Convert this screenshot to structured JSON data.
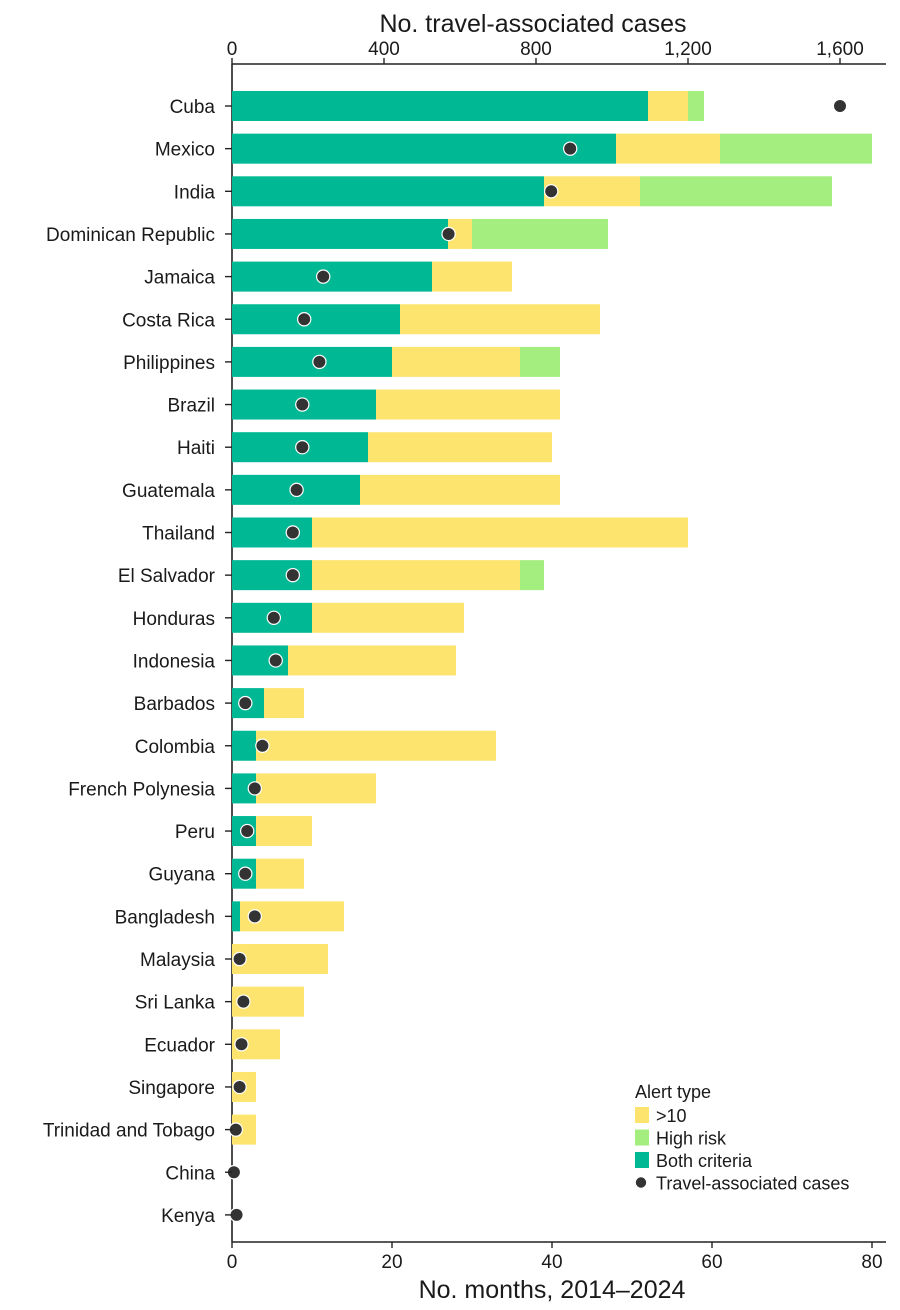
{
  "chart_data": {
    "type": "bar",
    "stacked": true,
    "orientation": "horizontal",
    "title": "",
    "xlabel_bottom": "No. months, 2014–2024",
    "xlabel_top": "No. travel-associated cases",
    "xlim_bottom": [
      0,
      82
    ],
    "xlim_top": [
      0,
      1722
    ],
    "ticks_bottom": [
      "0",
      "20",
      "40",
      "60",
      "80"
    ],
    "ticks_bottom_values": [
      0,
      20,
      40,
      60,
      80
    ],
    "ticks_top": [
      "0",
      "400",
      "800",
      "1,200",
      "1,600"
    ],
    "ticks_top_values": [
      0,
      400,
      800,
      1200,
      1600
    ],
    "categories": [
      "Cuba",
      "Mexico",
      "India",
      "Dominican Republic",
      "Jamaica",
      "Costa Rica",
      "Philippines",
      "Brazil",
      "Haiti",
      "Guatemala",
      "Thailand",
      "El Salvador",
      "Honduras",
      "Indonesia",
      "Barbados",
      "Colombia",
      "French Polynesia",
      "Peru",
      "Guyana",
      "Bangladesh",
      "Malaysia",
      "Sri Lanka",
      "Ecuador",
      "Singapore",
      "Trinidad and Tobago",
      "China",
      "Kenya"
    ],
    "series": [
      {
        "name": "Both criteria",
        "color": "#00b894",
        "values": [
          52,
          48,
          39,
          27,
          25,
          21,
          20,
          18,
          17,
          16,
          10,
          10,
          10,
          7,
          4,
          3,
          3,
          3,
          3,
          1,
          0,
          0,
          0,
          0,
          0,
          0,
          0
        ]
      },
      {
        "name": ">10",
        "color": "#fde46f",
        "values": [
          5,
          13,
          12,
          3,
          10,
          25,
          16,
          23,
          23,
          25,
          47,
          26,
          19,
          21,
          5,
          30,
          15,
          7,
          6,
          13,
          12,
          9,
          6,
          3,
          3,
          0,
          0
        ]
      },
      {
        "name": "High risk",
        "color": "#a3ee7e",
        "values": [
          2,
          19,
          24,
          17,
          0,
          0,
          5,
          0,
          0,
          0,
          0,
          3,
          0,
          0,
          0,
          0,
          0,
          0,
          0,
          0,
          0,
          0,
          0,
          0,
          0,
          0,
          0
        ]
      }
    ],
    "travel_cases": [
      1600,
      890,
      840,
      570,
      240,
      190,
      230,
      185,
      185,
      170,
      160,
      160,
      110,
      115,
      35,
      80,
      60,
      40,
      35,
      60,
      20,
      30,
      25,
      20,
      10,
      5,
      12
    ],
    "legend": {
      "title": "Alert type",
      "placement": "bottom-right",
      "entries": [
        {
          "label": ">10",
          "color": "#fde46f",
          "marker": "square"
        },
        {
          "label": "High risk",
          "color": "#a3ee7e",
          "marker": "square"
        },
        {
          "label": "Both criteria",
          "color": "#00b894",
          "marker": "square"
        },
        {
          "label": "Travel-associated cases",
          "color": "#333333",
          "marker": "circle"
        }
      ]
    }
  }
}
